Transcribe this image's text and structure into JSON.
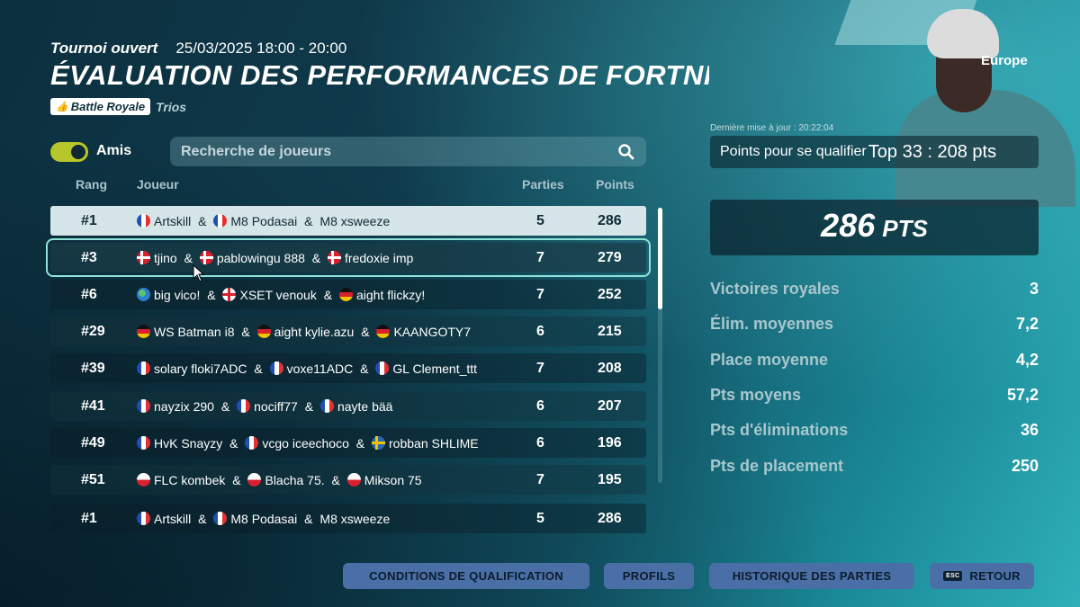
{
  "header": {
    "mode": "Tournoi ouvert",
    "datetime": "25/03/2025 18:00 - 20:00",
    "title": "ÉVALUATION DES PERFORMANCES DE FORTNITE",
    "badge_icon": "thumbs-up-icon",
    "badge_label": "Battle Royale",
    "team_mode": "Trios"
  },
  "filter": {
    "toggle_label": "Amis",
    "toggle_on": true,
    "toggle_color": "#b7c62a",
    "search_placeholder": "Recherche de joueurs"
  },
  "table": {
    "columns": {
      "rank": "Rang",
      "player": "Joueur",
      "games": "Parties",
      "points": "Points"
    },
    "rows": [
      {
        "rank": "#1",
        "state": "selected",
        "players": [
          {
            "flag": "fr",
            "name": "Artskill"
          },
          {
            "flag": "fr",
            "name": "M8 Podasai"
          },
          {
            "flag": "",
            "name": "M8 xsweeze"
          }
        ],
        "games": "5",
        "points": "286"
      },
      {
        "rank": "#3",
        "state": "focused",
        "players": [
          {
            "flag": "dk",
            "name": "tjino"
          },
          {
            "flag": "dk",
            "name": "pablowingu 888"
          },
          {
            "flag": "dk",
            "name": "fredoxie imp"
          }
        ],
        "games": "7",
        "points": "279"
      },
      {
        "rank": "#6",
        "state": "",
        "players": [
          {
            "flag": "world",
            "name": "big vico!"
          },
          {
            "flag": "en",
            "name": "XSET venouk"
          },
          {
            "flag": "de",
            "name": "aight flickzy!"
          }
        ],
        "games": "7",
        "points": "252"
      },
      {
        "rank": "#29",
        "state": "",
        "players": [
          {
            "flag": "de",
            "name": "WS Batman i8"
          },
          {
            "flag": "de",
            "name": "aight kylie.azu"
          },
          {
            "flag": "de",
            "name": "KAANGOTY7"
          }
        ],
        "games": "6",
        "points": "215"
      },
      {
        "rank": "#39",
        "state": "",
        "players": [
          {
            "flag": "fr",
            "name": "solary floki7ADC"
          },
          {
            "flag": "fr",
            "name": "voxe11ADC"
          },
          {
            "flag": "fr",
            "name": "GL Clement_ttt"
          }
        ],
        "games": "7",
        "points": "208"
      },
      {
        "rank": "#41",
        "state": "",
        "players": [
          {
            "flag": "fr",
            "name": "nayzix 290"
          },
          {
            "flag": "fr",
            "name": "nociff77"
          },
          {
            "flag": "fr",
            "name": "nayte bää"
          }
        ],
        "games": "6",
        "points": "207"
      },
      {
        "rank": "#49",
        "state": "",
        "players": [
          {
            "flag": "fr",
            "name": "HvK Snayzy"
          },
          {
            "flag": "fr",
            "name": "vcgo iceechoco"
          },
          {
            "flag": "se",
            "name": "robban SHLIME"
          }
        ],
        "games": "6",
        "points": "196"
      },
      {
        "rank": "#51",
        "state": "",
        "players": [
          {
            "flag": "pl",
            "name": "FLC kombek"
          },
          {
            "flag": "pl",
            "name": "Blacha 75."
          },
          {
            "flag": "pl",
            "name": "Mikson 75"
          }
        ],
        "games": "7",
        "points": "195"
      },
      {
        "rank": "#1",
        "state": "",
        "players": [
          {
            "flag": "fr",
            "name": "Artskill"
          },
          {
            "flag": "fr",
            "name": "M8 Podasai"
          },
          {
            "flag": "",
            "name": "M8 xsweeze"
          }
        ],
        "games": "5",
        "points": "286"
      }
    ],
    "separator": " & "
  },
  "scroll": {
    "position_fraction": 0.0,
    "visible_fraction": 0.37
  },
  "side": {
    "region": "Europe",
    "updated": "Dernière mise à jour : 20:22:04",
    "qualify_label": "Points pour se qualifier",
    "qualify_value": "Top 33 : 208 pts",
    "score_value": "286",
    "score_unit": "PTS",
    "stats": [
      {
        "label": "Victoires royales",
        "value": "3"
      },
      {
        "label": "Élim. moyennes",
        "value": "7,2"
      },
      {
        "label": "Place moyenne",
        "value": "4,2"
      },
      {
        "label": "Pts moyens",
        "value": "57,2"
      },
      {
        "label": "Pts d'éliminations",
        "value": "36"
      },
      {
        "label": "Pts de placement",
        "value": "250"
      }
    ]
  },
  "footer": {
    "buttons": [
      {
        "label": "CONDITIONS DE QUALIFICATION"
      },
      {
        "label": "PROFILS"
      },
      {
        "label": "HISTORIQUE DES PARTIES"
      },
      {
        "label": "RETOUR",
        "icon": "esc-key-icon",
        "icon_text": "ESC"
      }
    ],
    "button_color": "#4a6fa6"
  }
}
